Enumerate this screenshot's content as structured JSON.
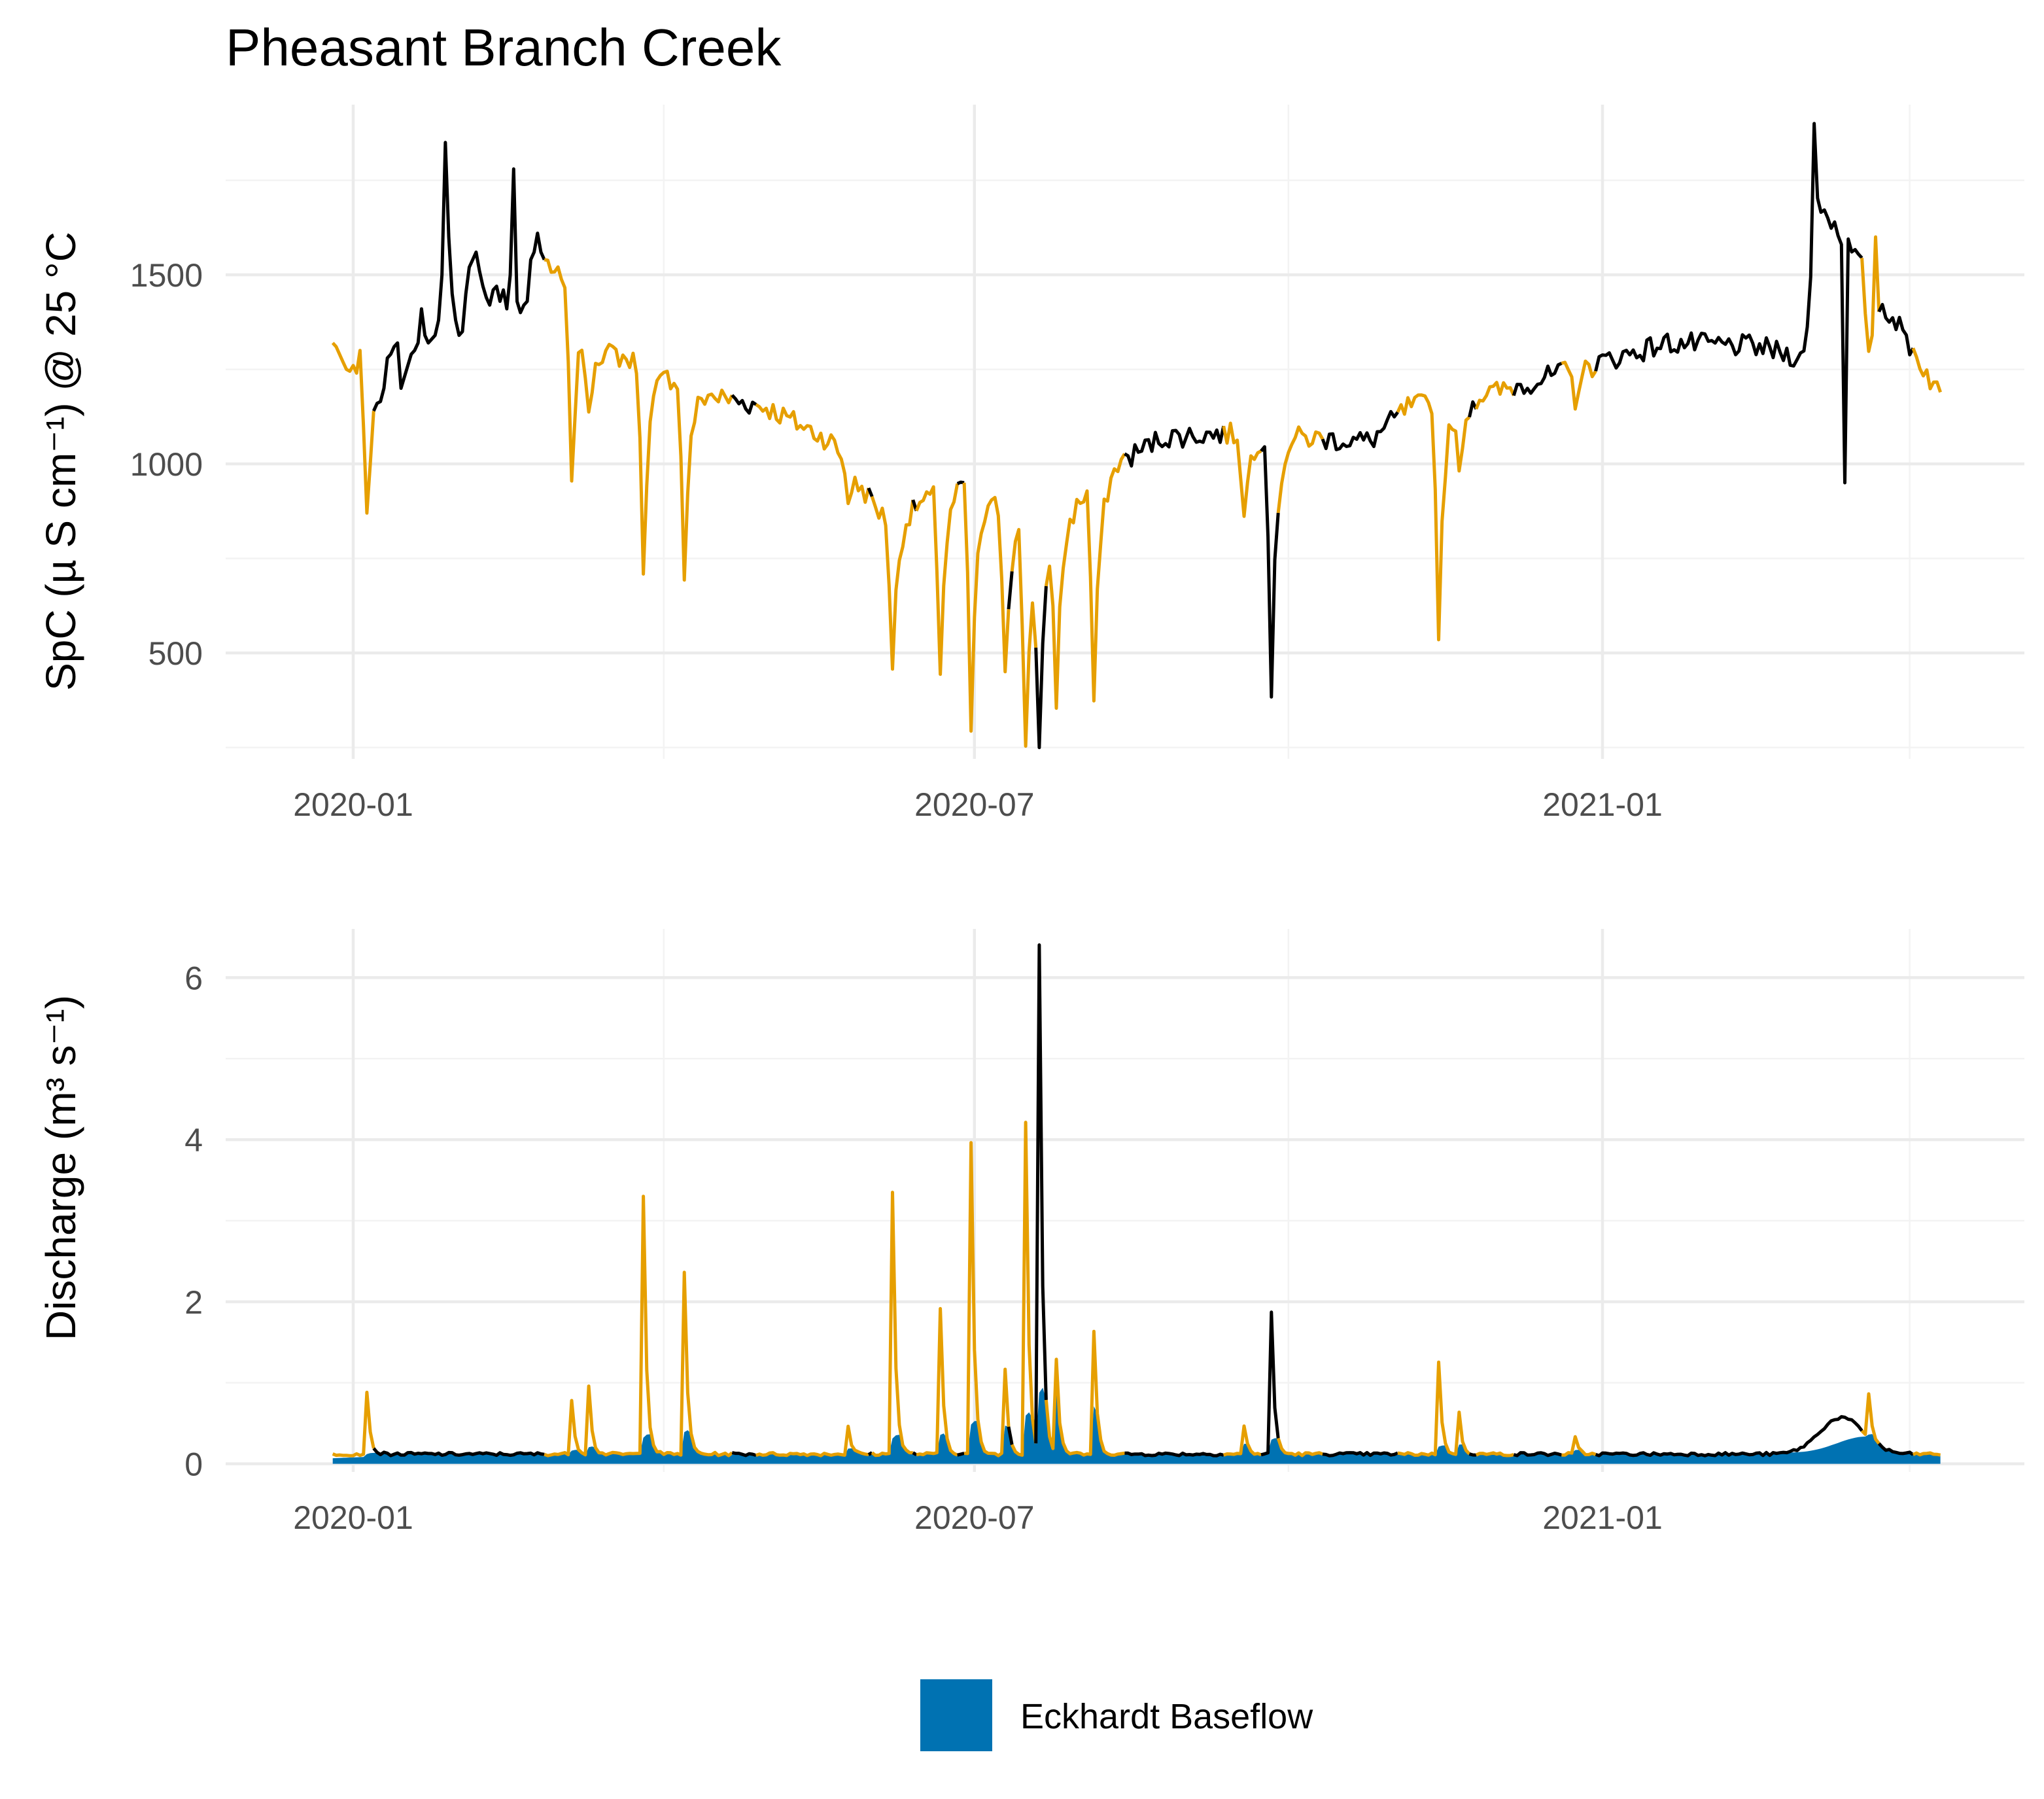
{
  "chart_data": [
    {
      "type": "line",
      "title": "Pheasant Branch Creek",
      "ylabel": "SpC (µ S cm⁻¹) @ 25 °C",
      "x_ticks": [
        "2020-01",
        "2020-07",
        "2021-01"
      ],
      "y_ticks": [
        500,
        1000,
        1500
      ],
      "ylim": [
        220,
        1950
      ],
      "xlim": [
        "2019-12-11",
        "2021-04-23"
      ],
      "grid": true,
      "colors": {
        "observed": "#000000",
        "event": "#E69F00"
      },
      "series": [
        {
          "values": [
            [
              "2019-12-26",
              1320
            ],
            [
              "2019-12-27",
              1310
            ],
            [
              "2019-12-28",
              1290
            ],
            [
              "2019-12-29",
              1270
            ],
            [
              "2019-12-30",
              1250
            ],
            [
              "2019-12-31",
              1245
            ],
            [
              "2020-01-01",
              1260
            ],
            [
              "2020-01-02",
              1240
            ],
            [
              "2020-01-03",
              1300
            ],
            [
              "2020-01-04",
              1100
            ],
            [
              "2020-01-05",
              870
            ],
            [
              "2020-01-06",
              1000
            ],
            [
              "2020-01-07",
              1140
            ],
            [
              "2020-01-08",
              1160
            ],
            [
              "2020-01-09",
              1165
            ],
            [
              "2020-01-10",
              1200
            ],
            [
              "2020-01-11",
              1280
            ],
            [
              "2020-01-12",
              1290
            ],
            [
              "2020-01-13",
              1310
            ],
            [
              "2020-01-14",
              1320
            ],
            [
              "2020-01-15",
              1200
            ],
            [
              "2020-01-16",
              1230
            ],
            [
              "2020-01-17",
              1260
            ],
            [
              "2020-01-18",
              1290
            ],
            [
              "2020-01-19",
              1300
            ],
            [
              "2020-01-20",
              1320
            ],
            [
              "2020-01-21",
              1410
            ],
            [
              "2020-01-22",
              1340
            ],
            [
              "2020-01-23",
              1320
            ],
            [
              "2020-01-24",
              1330
            ],
            [
              "2020-01-25",
              1340
            ],
            [
              "2020-01-26",
              1380
            ],
            [
              "2020-01-27",
              1500
            ],
            [
              "2020-01-28",
              1850
            ],
            [
              "2020-01-29",
              1600
            ],
            [
              "2020-01-30",
              1450
            ],
            [
              "2020-01-31",
              1380
            ],
            [
              "2020-02-01",
              1340
            ],
            [
              "2020-02-02",
              1350
            ],
            [
              "2020-02-03",
              1450
            ],
            [
              "2020-02-04",
              1520
            ],
            [
              "2020-02-05",
              1540
            ],
            [
              "2020-02-06",
              1560
            ],
            [
              "2020-02-07",
              1510
            ],
            [
              "2020-02-08",
              1470
            ],
            [
              "2020-02-09",
              1440
            ],
            [
              "2020-02-10",
              1420
            ],
            [
              "2020-02-11",
              1460
            ],
            [
              "2020-02-12",
              1470
            ],
            [
              "2020-02-13",
              1430
            ],
            [
              "2020-02-14",
              1460
            ],
            [
              "2020-02-15",
              1410
            ],
            [
              "2020-02-16",
              1500
            ],
            [
              "2020-02-17",
              1780
            ],
            [
              "2020-02-18",
              1430
            ],
            [
              "2020-02-19",
              1400
            ],
            [
              "2020-02-20",
              1420
            ],
            [
              "2020-02-21",
              1430
            ],
            [
              "2020-02-22",
              1540
            ],
            [
              "2020-02-23",
              1560
            ],
            [
              "2020-02-24",
              1610
            ],
            [
              "2020-02-25",
              1560
            ],
            [
              "2020-02-26",
              1540
            ]
          ]
        }
      ]
    },
    {
      "type": "line",
      "ylabel": "Discharge (m³ s⁻¹)",
      "x_ticks": [
        "2020-01",
        "2020-07",
        "2021-01"
      ],
      "y_ticks": [
        0,
        2,
        4,
        6
      ],
      "ylim": [
        -0.1,
        6.6
      ],
      "grid": true,
      "legend": {
        "position": "bottom",
        "entries": [
          "Eckhardt Baseflow"
        ]
      },
      "colors": {
        "observed": "#000000",
        "event": "#E69F00",
        "baseflow": "#0072B2"
      }
    }
  ]
}
